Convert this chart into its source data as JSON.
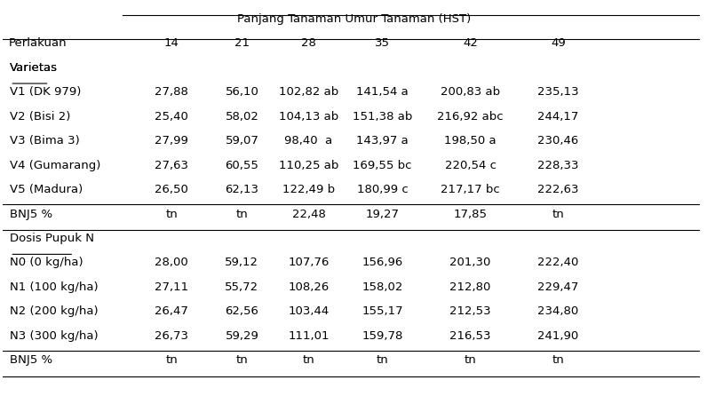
{
  "title": "Panjang Tanaman Umur Tanaman (HST)",
  "col_header_main": "Perlakuan",
  "col_headers": [
    "14",
    "21",
    "28",
    "35",
    "42",
    "49"
  ],
  "section1_label": "Varietas",
  "section1_rows": [
    [
      "V1 (DK 979)",
      "27,88",
      "56,10",
      "102,82 ab",
      "141,54 a",
      "200,83 ab",
      "235,13"
    ],
    [
      "V2 (Bisi 2)",
      "25,40",
      "58,02",
      "104,13 ab",
      "151,38 ab",
      "216,92 abc",
      "244,17"
    ],
    [
      "V3 (Bima 3)",
      "27,99",
      "59,07",
      "98,40  a",
      "143,97 a",
      "198,50 a",
      "230,46"
    ],
    [
      "V4 (Gumarang)",
      "27,63",
      "60,55",
      "110,25 ab",
      "169,55 bc",
      "220,54 c",
      "228,33"
    ],
    [
      "V5 (Madura)",
      "26,50",
      "62,13",
      "122,49 b",
      "180,99 c",
      "217,17 bc",
      "222,63"
    ]
  ],
  "section1_bnj": [
    "BNJ5 %",
    "tn",
    "tn",
    "22,48",
    "19,27",
    "17,85",
    "tn"
  ],
  "section2_label": "Dosis Pupuk N",
  "section2_rows": [
    [
      "N0 (0 kg/ha)",
      "28,00",
      "59,12",
      "107,76",
      "156,96",
      "201,30",
      "222,40"
    ],
    [
      "N1 (100 kg/ha)",
      "27,11",
      "55,72",
      "108,26",
      "158,02",
      "212,80",
      "229,47"
    ],
    [
      "N2 (200 kg/ha)",
      "26,47",
      "62,56",
      "103,44",
      "155,17",
      "212,53",
      "234,80"
    ],
    [
      "N3 (300 kg/ha)",
      "26,73",
      "59,29",
      "111,01",
      "159,78",
      "216,53",
      "241,90"
    ]
  ],
  "section2_bnj": [
    "BNJ5 %",
    "tn",
    "tn",
    "tn",
    "tn",
    "tn",
    "tn"
  ],
  "font_family": "DejaVu Sans",
  "font_size": 9.5,
  "bg_color": "#ffffff",
  "text_color": "#000000"
}
